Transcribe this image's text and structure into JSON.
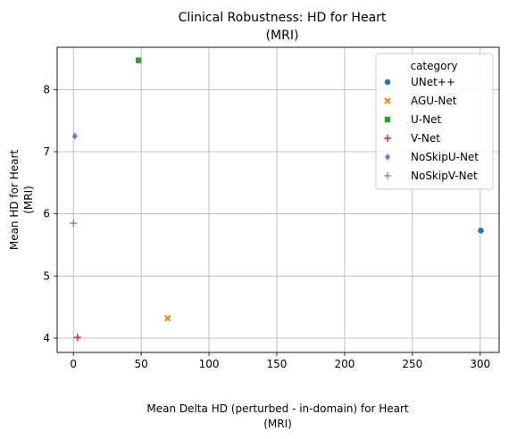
{
  "chart_data": {
    "type": "scatter",
    "title_line1": "Clinical Robustness: HD for Heart",
    "title_line2": "(MRI)",
    "xlabel_line1": "Mean Delta HD (perturbed - in-domain) for Heart",
    "xlabel_line2": "(MRI)",
    "ylabel_line1": "Mean HD for Heart",
    "ylabel_line2": "(MRI)",
    "xlim": [
      -12,
      314
    ],
    "ylim": [
      3.77,
      8.68
    ],
    "xticks": [
      0,
      50,
      100,
      150,
      200,
      250,
      300
    ],
    "yticks": [
      4,
      5,
      6,
      7,
      8
    ],
    "grid": true,
    "legend_title": "category",
    "legend_position": "upper right",
    "series": [
      {
        "name": "UNet++",
        "color": "#1f77b4",
        "marker": "circle",
        "x": 300.5,
        "y": 5.73
      },
      {
        "name": "AGU-Net",
        "color": "#ff7f0e",
        "marker": "x",
        "x": 69.5,
        "y": 4.32
      },
      {
        "name": "U-Net",
        "color": "#2ca02c",
        "marker": "square",
        "x": 48.0,
        "y": 8.47
      },
      {
        "name": "V-Net",
        "color": "#d62728",
        "marker": "plus",
        "x": 3.0,
        "y": 4.01
      },
      {
        "name": "NoSkipU-Net",
        "color": "#9467bd",
        "marker": "diamond",
        "x": 1.0,
        "y": 7.25
      },
      {
        "name": "NoSkipV-Net",
        "color": "#8c564b",
        "marker": "thin-plus",
        "x": 0.0,
        "y": 5.85
      }
    ]
  }
}
